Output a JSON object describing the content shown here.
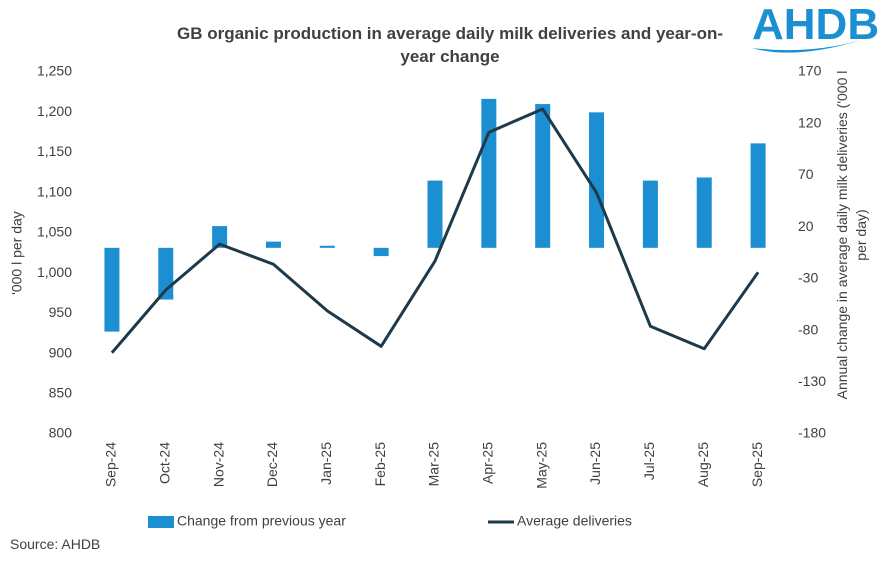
{
  "logo": "AHDB",
  "source": "Source: AHDB",
  "chart_data": {
    "type": "combo",
    "title": "GB organic production in average daily milk deliveries and year-on-year change",
    "y_label": "'000 l per day",
    "y2_label": "Annual change in average daily milk deliveries ('000 l per day)",
    "categories": [
      "Sep-24",
      "Oct-24",
      "Nov-24",
      "Dec-24",
      "Jan-25",
      "Feb-25",
      "Mar-25",
      "Apr-25",
      "May-25",
      "Jun-25",
      "Jul-25",
      "Aug-25",
      "Sep-25"
    ],
    "series": [
      {
        "name": "Change from previous year",
        "type": "bar",
        "axis": "y2",
        "color": "#1b8fd2",
        "values": [
          -81,
          -50,
          21,
          6,
          2,
          -8,
          65,
          144,
          139,
          131,
          65,
          68,
          101
        ]
      },
      {
        "name": "Average deliveries",
        "type": "line",
        "color": "#1e3a4a",
        "values": [
          901,
          979,
          1036,
          1011,
          953,
          909,
          1015,
          1175,
          1204,
          1100,
          934,
          906,
          1001
        ]
      }
    ],
    "ylim": [
      800,
      1250
    ],
    "yticks": [
      800,
      850,
      900,
      950,
      {
        "value": 1000,
        "label": "1,000"
      },
      {
        "value": 1050,
        "label": "1,050"
      },
      {
        "value": 1100,
        "label": "1,100"
      },
      {
        "value": 1150,
        "label": "1,150"
      },
      {
        "value": 1200,
        "label": "1,200"
      },
      {
        "value": 1250,
        "label": "1,250"
      }
    ],
    "y2lim": [
      -180,
      170
    ],
    "y2ticks": [
      -180,
      -130,
      -80,
      -30,
      20,
      70,
      120,
      170
    ],
    "grid": false
  }
}
